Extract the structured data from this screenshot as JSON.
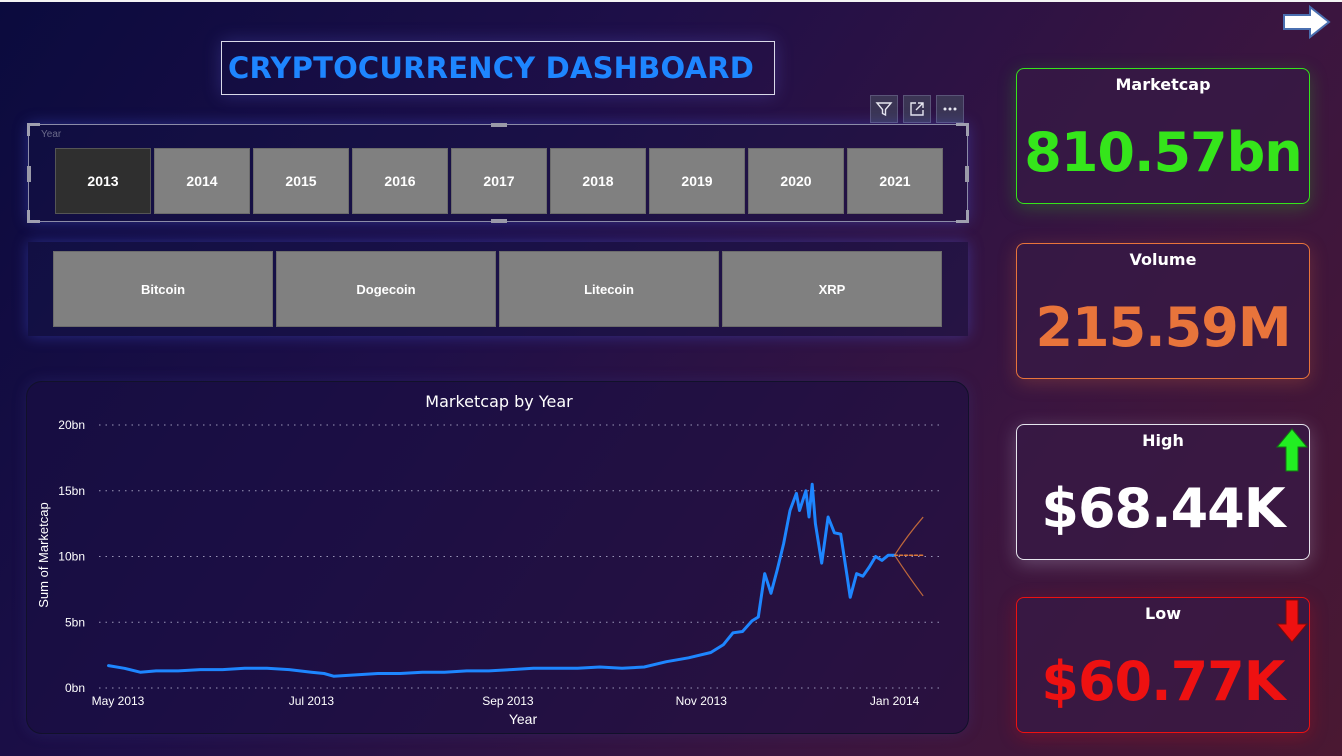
{
  "header": {
    "title": "CRYPTOCURRENCY DASHBOARD"
  },
  "year_slicer": {
    "caption": "Year",
    "selected": "2013",
    "options": [
      "2013",
      "2014",
      "2015",
      "2016",
      "2017",
      "2018",
      "2019",
      "2020",
      "2021"
    ]
  },
  "coin_slicer": {
    "options": [
      "Bitcoin",
      "Dogecoin",
      "Litecoin",
      "XRP"
    ]
  },
  "kpis": {
    "marketcap": {
      "label": "Marketcap",
      "value": "810.57bn",
      "color": "#35e51b"
    },
    "volume": {
      "label": "Volume",
      "value": "215.59M",
      "color": "#e8743b"
    },
    "high": {
      "label": "High",
      "value": "$68.44K",
      "color": "#ffffff",
      "trend": "up-arrow-icon"
    },
    "low": {
      "label": "Low",
      "value": "$60.77K",
      "color": "#ee1111",
      "trend": "down-arrow-icon"
    }
  },
  "colors": {
    "line": "#1e86ff",
    "forecast": "#d9773a",
    "title": "#1e86ff"
  },
  "chart_data": {
    "type": "line",
    "title": "Marketcap by Year",
    "xlabel": "Year",
    "ylabel": "Sum of Marketcap",
    "y_ticks": [
      "0bn",
      "5bn",
      "10bn",
      "15bn",
      "20bn"
    ],
    "ylim": [
      0,
      20
    ],
    "y_unit": "bn",
    "x_ticks": [
      "May 2013",
      "Jul 2013",
      "Sep 2013",
      "Nov 2013",
      "Jan 2014"
    ],
    "grid": true,
    "series": [
      {
        "values": [
          [
            "2013-04-28",
            1.7
          ],
          [
            "2013-05-03",
            1.5
          ],
          [
            "2013-05-08",
            1.2
          ],
          [
            "2013-05-13",
            1.3
          ],
          [
            "2013-05-20",
            1.3
          ],
          [
            "2013-05-27",
            1.4
          ],
          [
            "2013-06-03",
            1.4
          ],
          [
            "2013-06-10",
            1.5
          ],
          [
            "2013-06-17",
            1.5
          ],
          [
            "2013-06-24",
            1.4
          ],
          [
            "2013-07-01",
            1.2
          ],
          [
            "2013-07-05",
            1.1
          ],
          [
            "2013-07-08",
            0.9
          ],
          [
            "2013-07-15",
            1.0
          ],
          [
            "2013-07-22",
            1.1
          ],
          [
            "2013-07-29",
            1.1
          ],
          [
            "2013-08-05",
            1.2
          ],
          [
            "2013-08-12",
            1.2
          ],
          [
            "2013-08-19",
            1.3
          ],
          [
            "2013-08-26",
            1.3
          ],
          [
            "2013-09-02",
            1.4
          ],
          [
            "2013-09-09",
            1.5
          ],
          [
            "2013-09-16",
            1.5
          ],
          [
            "2013-09-23",
            1.5
          ],
          [
            "2013-09-30",
            1.6
          ],
          [
            "2013-10-07",
            1.5
          ],
          [
            "2013-10-14",
            1.6
          ],
          [
            "2013-10-21",
            2.0
          ],
          [
            "2013-10-28",
            2.3
          ],
          [
            "2013-11-04",
            2.7
          ],
          [
            "2013-11-08",
            3.3
          ],
          [
            "2013-11-11",
            4.2
          ],
          [
            "2013-11-14",
            4.3
          ],
          [
            "2013-11-17",
            5.1
          ],
          [
            "2013-11-19",
            5.4
          ],
          [
            "2013-11-21",
            8.7
          ],
          [
            "2013-11-23",
            7.2
          ],
          [
            "2013-11-25",
            9.0
          ],
          [
            "2013-11-27",
            11.0
          ],
          [
            "2013-11-29",
            13.5
          ],
          [
            "2013-12-01",
            14.8
          ],
          [
            "2013-12-02",
            13.5
          ],
          [
            "2013-12-04",
            15.0
          ],
          [
            "2013-12-05",
            13.0
          ],
          [
            "2013-12-06",
            15.5
          ],
          [
            "2013-12-07",
            12.5
          ],
          [
            "2013-12-09",
            9.5
          ],
          [
            "2013-12-11",
            13.0
          ],
          [
            "2013-12-13",
            11.8
          ],
          [
            "2013-12-15",
            11.7
          ],
          [
            "2013-12-17",
            8.5
          ],
          [
            "2013-12-18",
            6.9
          ],
          [
            "2013-12-20",
            8.7
          ],
          [
            "2013-12-22",
            8.5
          ],
          [
            "2013-12-24",
            9.2
          ],
          [
            "2013-12-26",
            10.0
          ],
          [
            "2013-12-28",
            9.7
          ],
          [
            "2013-12-30",
            10.1
          ],
          [
            "2014-01-01",
            10.1
          ]
        ]
      },
      {
        "values": [
          [
            "2014-01-01",
            10.1
          ],
          [
            "2014-01-10",
            10.1
          ]
        ]
      }
    ],
    "forecast_band": {
      "upper": [
        [
          "2014-01-01",
          10.1
        ],
        [
          "2014-01-05",
          11.6
        ],
        [
          "2014-01-10",
          13.0
        ]
      ],
      "lower": [
        [
          "2014-01-01",
          10.1
        ],
        [
          "2014-01-05",
          8.6
        ],
        [
          "2014-01-10",
          7.0
        ]
      ]
    },
    "legend": "none"
  }
}
